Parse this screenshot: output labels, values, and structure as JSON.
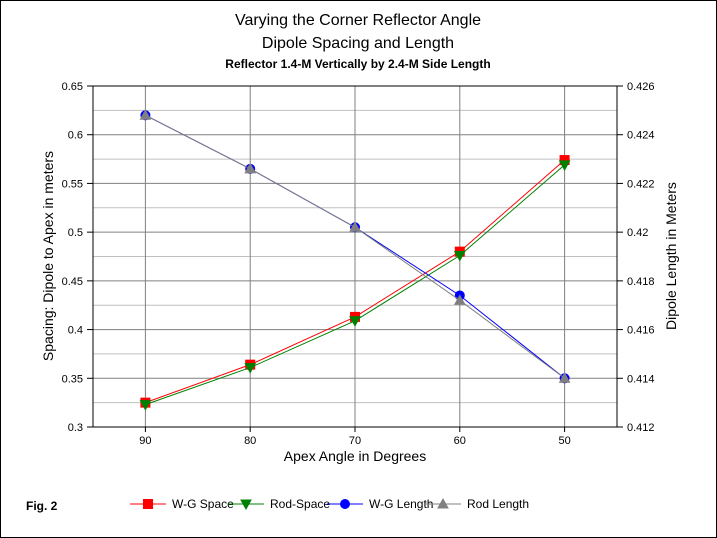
{
  "chart_data": {
    "type": "line",
    "title": "Varying the Corner Reflector Angle",
    "title_line2": "Dipole Spacing and Length",
    "subtitle": "Reflector 1.4-M Vertically by 2.4-M Side Length",
    "xlabel": "Apex Angle in Degrees",
    "ylabel_left": "Spacing:  Dipole to Apex in meters",
    "ylabel_right": "Dipole Length in Meters",
    "x": [
      90,
      80,
      70,
      60,
      50
    ],
    "x_ticks": [
      "90",
      "80",
      "70",
      "60",
      "50"
    ],
    "xlim": [
      95,
      45
    ],
    "ylim_left": [
      0.3,
      0.65
    ],
    "ylim_right": [
      0.412,
      0.426
    ],
    "y_ticks_left": [
      "0.3",
      "0.35",
      "0.4",
      "0.45",
      "0.5",
      "0.55",
      "0.6",
      "0.65"
    ],
    "y_ticks_right": [
      "0.412",
      "0.414",
      "0.416",
      "0.418",
      "0.42",
      "0.422",
      "0.424",
      "0.426"
    ],
    "grid": true,
    "legend_position": "bottom",
    "series": [
      {
        "name": "W-G Space",
        "axis": "left",
        "color": "#ff0000",
        "marker": "square",
        "values": [
          0.325,
          0.364,
          0.413,
          0.48,
          0.574
        ]
      },
      {
        "name": "Rod-Space",
        "axis": "left",
        "color": "#008000",
        "marker": "triangle-down",
        "values": [
          0.323,
          0.361,
          0.409,
          0.476,
          0.569
        ]
      },
      {
        "name": "W-G Length",
        "axis": "right",
        "color": "#0000ff",
        "marker": "circle",
        "values": [
          0.4248,
          0.4226,
          0.4202,
          0.4174,
          0.414
        ]
      },
      {
        "name": "Rod Length",
        "axis": "right",
        "color": "#808080",
        "marker": "triangle-up",
        "values": [
          0.4248,
          0.4226,
          0.4202,
          0.4172,
          0.414
        ]
      }
    ]
  },
  "figure_label": "Fig. 2"
}
